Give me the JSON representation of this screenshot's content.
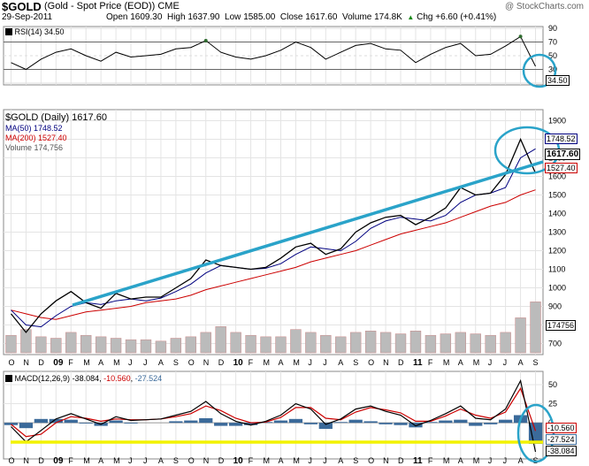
{
  "header": {
    "symbol": "$GOLD",
    "description": "(Gold - Spot Price (EOD)) CME",
    "date": "29-Sep-2011",
    "open_label": "Open",
    "open": "1609.30",
    "high_label": "High",
    "high": "1637.90",
    "low_label": "Low",
    "low": "1585.00",
    "close_label": "Close",
    "close": "1617.60",
    "volume_label": "Volume",
    "volume": "174.8K",
    "chg_label": "Chg",
    "chg": "+6.60 (+0.41%)",
    "up_arrow": "▲",
    "watermark": "@ StockCharts.com"
  },
  "rsi_panel": {
    "legend": "RSI(14) 34.50",
    "value_label": "34.50"
  },
  "price_panel": {
    "legend_main": "$GOLD (Daily) 1617.60",
    "legend_ma50": "MA(50) 1748.52",
    "legend_ma200": "MA(200) 1527.40",
    "legend_volume": "Volume 174,756",
    "ma50_label": "1748.52",
    "close_label": "1617.60",
    "ma200_label": "1527.40",
    "volume_label": "174756"
  },
  "macd_panel": {
    "legend_name": "MACD(12,26,9)",
    "legend_macd": "-38.084",
    "legend_signal": "-10.560",
    "legend_hist": "-27.524",
    "signal_label": "-10.560",
    "hist_label": "-27.524",
    "macd_label": "-38.084"
  },
  "colors": {
    "price": "#000000",
    "ma50": "#000080",
    "ma200": "#cc0000",
    "volume": "#bbbbbb",
    "rsi": "#000000",
    "rsi_over": "#2f6b2f",
    "macd": "#000000",
    "signal": "#cc0000",
    "histogram": "#3b6a9a",
    "annotation": "#2aa3c9",
    "support": "#f2f200"
  },
  "chart_data": [
    {
      "type": "line",
      "name": "price",
      "ylim": [
        650,
        1950
      ],
      "y_ticks": [
        700,
        800,
        900,
        1000,
        1100,
        1200,
        1300,
        1400,
        1500,
        1600,
        1700,
        1800,
        1900
      ],
      "x_ticks": [
        "O",
        "N",
        "D",
        "09",
        "F",
        "M",
        "A",
        "M",
        "J",
        "J",
        "A",
        "S",
        "O",
        "N",
        "D",
        "10",
        "F",
        "M",
        "A",
        "M",
        "J",
        "J",
        "A",
        "S",
        "O",
        "N",
        "D",
        "11",
        "F",
        "M",
        "A",
        "M",
        "J",
        "J",
        "A",
        "S"
      ],
      "year_ticks": [
        "09",
        "10",
        "11"
      ],
      "x": [
        "2008-10",
        "2008-11",
        "2008-12",
        "2009-01",
        "2009-02",
        "2009-03",
        "2009-04",
        "2009-05",
        "2009-06",
        "2009-07",
        "2009-08",
        "2009-09",
        "2009-10",
        "2009-11",
        "2009-12",
        "2010-01",
        "2010-02",
        "2010-03",
        "2010-04",
        "2010-05",
        "2010-06",
        "2010-07",
        "2010-08",
        "2010-09",
        "2010-10",
        "2010-11",
        "2010-12",
        "2011-01",
        "2011-02",
        "2011-03",
        "2011-04",
        "2011-05",
        "2011-06",
        "2011-07",
        "2011-08",
        "2011-09"
      ],
      "close": [
        860,
        760,
        860,
        930,
        980,
        920,
        890,
        970,
        940,
        950,
        950,
        1000,
        1050,
        1150,
        1120,
        1110,
        1100,
        1110,
        1160,
        1220,
        1240,
        1180,
        1210,
        1300,
        1350,
        1380,
        1390,
        1340,
        1380,
        1430,
        1540,
        1500,
        1510,
        1610,
        1800,
        1617.6
      ],
      "ma50": [
        880,
        800,
        790,
        850,
        900,
        920,
        910,
        930,
        940,
        930,
        945,
        980,
        1020,
        1080,
        1120,
        1110,
        1100,
        1105,
        1130,
        1180,
        1220,
        1210,
        1200,
        1250,
        1320,
        1360,
        1380,
        1370,
        1360,
        1390,
        1460,
        1500,
        1510,
        1540,
        1700,
        1748.52
      ],
      "ma200": [
        880,
        860,
        840,
        830,
        850,
        870,
        880,
        890,
        900,
        920,
        930,
        940,
        960,
        990,
        1010,
        1030,
        1050,
        1070,
        1090,
        1110,
        1140,
        1160,
        1180,
        1200,
        1230,
        1260,
        1290,
        1310,
        1330,
        1350,
        1380,
        1410,
        1440,
        1460,
        1500,
        1527.4
      ],
      "volume": [
        60,
        80,
        55,
        50,
        70,
        60,
        55,
        50,
        45,
        45,
        40,
        50,
        55,
        70,
        90,
        70,
        60,
        55,
        55,
        80,
        70,
        60,
        55,
        70,
        75,
        70,
        65,
        75,
        60,
        65,
        70,
        65,
        60,
        70,
        120,
        174.756
      ],
      "volume_max": 300,
      "volume_ticks": [
        800,
        900
      ]
    },
    {
      "type": "line",
      "name": "RSI(14)",
      "ylim": [
        10,
        90
      ],
      "y_ticks": [
        10,
        30,
        50,
        70,
        90
      ],
      "overbought": 70,
      "oversold": 30,
      "values": [
        40,
        30,
        45,
        55,
        60,
        50,
        42,
        55,
        48,
        50,
        52,
        60,
        62,
        72,
        55,
        48,
        45,
        50,
        58,
        70,
        62,
        45,
        55,
        65,
        68,
        60,
        58,
        40,
        52,
        62,
        68,
        50,
        52,
        64,
        78,
        34.5
      ]
    },
    {
      "type": "line",
      "name": "MACD(12,26,9)",
      "ylim": [
        -45,
        65
      ],
      "y_ticks": [
        0,
        25,
        50
      ],
      "macd": [
        -5,
        -25,
        -10,
        5,
        12,
        5,
        -2,
        8,
        3,
        4,
        5,
        10,
        15,
        28,
        12,
        2,
        -3,
        2,
        10,
        25,
        18,
        -2,
        5,
        18,
        22,
        15,
        10,
        -4,
        3,
        12,
        22,
        6,
        4,
        18,
        55,
        -38.084
      ],
      "signal": [
        -2,
        -18,
        -15,
        0,
        8,
        6,
        2,
        5,
        4,
        4,
        5,
        8,
        12,
        22,
        16,
        6,
        0,
        1,
        7,
        20,
        20,
        6,
        4,
        14,
        20,
        17,
        13,
        2,
        2,
        9,
        18,
        10,
        6,
        14,
        45,
        -10.56
      ],
      "histogram": [
        -3,
        -7,
        5,
        5,
        4,
        -1,
        -4,
        3,
        -1,
        0,
        0,
        2,
        3,
        6,
        -4,
        -4,
        -3,
        1,
        3,
        5,
        -2,
        -8,
        1,
        4,
        2,
        -2,
        -3,
        -6,
        1,
        3,
        4,
        -4,
        -2,
        4,
        10,
        -27.524
      ]
    }
  ]
}
